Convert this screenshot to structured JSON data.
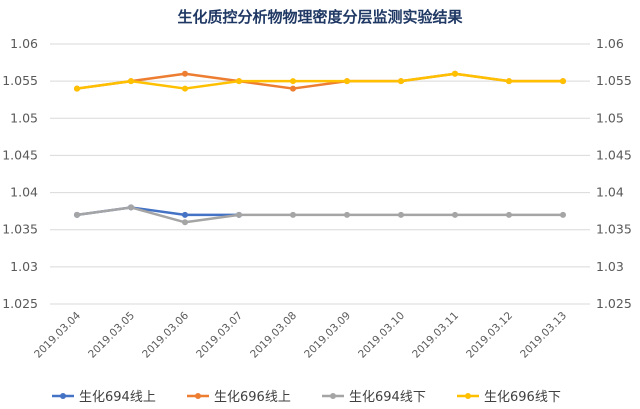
{
  "chart_data": {
    "type": "line",
    "title": "生化质控分析物物理密度分层监测实验结果",
    "x": [
      "2019.03.04",
      "2019.03.05",
      "2019.03.06",
      "2019.03.07",
      "2019.03.08",
      "2019.03.09",
      "2019.03.10",
      "2019.03.11",
      "2019.03.12",
      "2019.03.13"
    ],
    "ylim": [
      1.025,
      1.06
    ],
    "yticks": [
      "1.025",
      "1.03",
      "1.035",
      "1.04",
      "1.045",
      "1.05",
      "1.055",
      "1.06"
    ],
    "secondary_y_axis_same_scale": true,
    "grid": true,
    "legend_position": "bottom",
    "series": [
      {
        "name": "生化694线上",
        "color": "#4472c4",
        "values": [
          1.037,
          1.038,
          1.037,
          1.037,
          null,
          null,
          null,
          null,
          null,
          null
        ]
      },
      {
        "name": "生化696线上",
        "color": "#ed7d31",
        "values": [
          1.054,
          1.055,
          1.056,
          1.055,
          1.054,
          1.055,
          1.055,
          1.056,
          1.055,
          1.055
        ]
      },
      {
        "name": "生化694线下",
        "color": "#a5a5a5",
        "values": [
          1.037,
          1.038,
          1.036,
          1.037,
          1.037,
          1.037,
          1.037,
          1.037,
          1.037,
          1.037
        ]
      },
      {
        "name": "生化696线下",
        "color": "#ffc000",
        "values": [
          1.054,
          1.055,
          1.054,
          1.055,
          1.055,
          1.055,
          1.055,
          1.056,
          1.055,
          1.055
        ]
      }
    ]
  }
}
